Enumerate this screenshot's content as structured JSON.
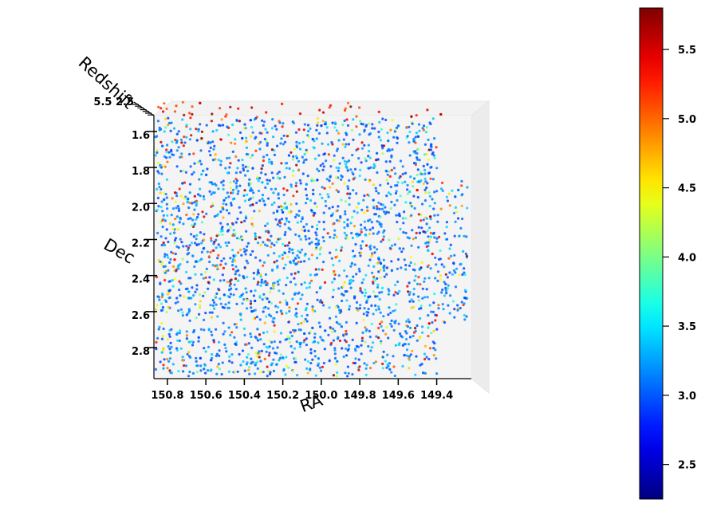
{
  "chart_data": {
    "type": "scatter",
    "projection": "3d",
    "title": "",
    "xlabel": "RA",
    "ylabel": "Dec",
    "zlabel": "Redshift",
    "x_axis": {
      "range": [
        149.22,
        150.87
      ],
      "inverted": true,
      "ticks": [
        150.8,
        150.6,
        150.4,
        150.2,
        150.0,
        149.8,
        149.6,
        149.4
      ],
      "tick_labels": [
        "150.8",
        "150.6",
        "150.4",
        "150.2",
        "150.0",
        "149.8",
        "149.6",
        "149.4"
      ]
    },
    "y_axis": {
      "range": [
        1.49,
        2.95
      ],
      "inverted": true,
      "ticks": [
        1.6,
        1.8,
        2.0,
        2.2,
        2.4,
        2.6,
        2.8
      ],
      "tick_labels": [
        "1.6",
        "1.8",
        "2.0",
        "2.2",
        "2.4",
        "2.6",
        "2.8"
      ]
    },
    "z_axis": {
      "ticks_overlapping": true,
      "tick_labels_glyphs": "5.5 2.5"
    },
    "colorbar": {
      "colormap": "jet",
      "range": [
        2.25,
        5.8
      ],
      "ticks": [
        2.5,
        3.0,
        3.5,
        4.0,
        4.5,
        5.0,
        5.5
      ],
      "tick_labels": [
        "2.5",
        "3.0",
        "3.5",
        "4.0",
        "4.5",
        "5.0",
        "5.5"
      ]
    },
    "grid": false,
    "legend": "none",
    "value_distribution": {
      "n_points": 2600,
      "color_value_weights": {
        "2.9-3.2": 0.55,
        "3.2-3.5": 0.22,
        "3.5-4.5": 0.08,
        "4.5-5.2": 0.08,
        "5.2-5.8": 0.07
      }
    }
  }
}
